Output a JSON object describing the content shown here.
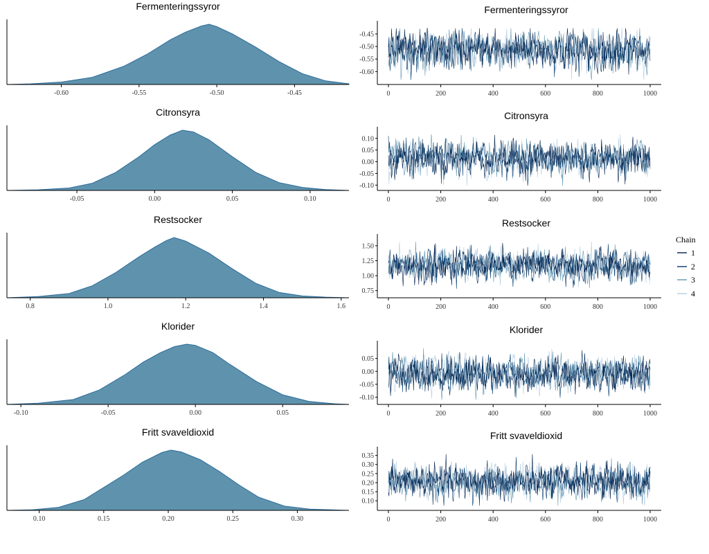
{
  "colors": {
    "density_fill": "#5f93ad",
    "density_line": "#2b6a9a",
    "axis": "#000000",
    "chain1": "#011f4b",
    "chain2": "#03396c",
    "chain3": "#6497b1",
    "chain4": "#b3cde0"
  },
  "legend": {
    "title": "Chain",
    "items": [
      {
        "label": "1",
        "color": "#011f4b"
      },
      {
        "label": "2",
        "color": "#03396c"
      },
      {
        "label": "3",
        "color": "#6497b1"
      },
      {
        "label": "4",
        "color": "#b3cde0"
      }
    ]
  },
  "chart_data": [
    {
      "type": "area",
      "kind": "density",
      "title": "Fermenteringssyror",
      "xlim": [
        -0.635,
        -0.415
      ],
      "xticks": [
        -0.6,
        -0.55,
        -0.5,
        -0.45
      ],
      "xtick_labels": [
        "-0.60",
        "-0.55",
        "-0.50",
        "-0.45"
      ],
      "x": [
        -0.635,
        -0.62,
        -0.6,
        -0.58,
        -0.56,
        -0.545,
        -0.53,
        -0.52,
        -0.51,
        -0.505,
        -0.5,
        -0.49,
        -0.475,
        -0.46,
        -0.445,
        -0.43,
        -0.415
      ],
      "y": [
        0.0,
        0.01,
        0.04,
        0.12,
        0.3,
        0.5,
        0.74,
        0.87,
        0.97,
        1.0,
        0.96,
        0.84,
        0.62,
        0.38,
        0.18,
        0.06,
        0.01
      ]
    },
    {
      "type": "line",
      "kind": "trace",
      "title": "Fermenteringssyror",
      "xlim": [
        0,
        1000
      ],
      "ylim": [
        -0.635,
        -0.425
      ],
      "xticks": [
        0,
        200,
        400,
        600,
        800,
        1000
      ],
      "yticks": [
        -0.6,
        -0.55,
        -0.5,
        -0.45
      ],
      "ytick_labels": [
        "-0.60",
        "-0.55",
        "-0.50",
        "-0.45"
      ],
      "center": -0.515,
      "sd": 0.037,
      "chains": 4,
      "iterations": 1000
    },
    {
      "type": "area",
      "kind": "density",
      "title": "Citronsyra",
      "xlim": [
        -0.095,
        0.125
      ],
      "xticks": [
        -0.05,
        0.0,
        0.05,
        0.1
      ],
      "xtick_labels": [
        "-0.05",
        "0.00",
        "0.05",
        "0.10"
      ],
      "x": [
        -0.095,
        -0.075,
        -0.055,
        -0.04,
        -0.025,
        -0.01,
        0.0,
        0.01,
        0.018,
        0.025,
        0.035,
        0.05,
        0.065,
        0.08,
        0.095,
        0.11,
        0.125
      ],
      "y": [
        0.0,
        0.01,
        0.04,
        0.12,
        0.3,
        0.56,
        0.76,
        0.92,
        1.0,
        0.97,
        0.84,
        0.56,
        0.3,
        0.13,
        0.05,
        0.015,
        0.0
      ]
    },
    {
      "type": "line",
      "kind": "trace",
      "title": "Citronsyra",
      "xlim": [
        0,
        1000
      ],
      "ylim": [
        -0.105,
        0.12
      ],
      "xticks": [
        0,
        200,
        400,
        600,
        800,
        1000
      ],
      "yticks": [
        -0.1,
        -0.05,
        0.0,
        0.05,
        0.1
      ],
      "ytick_labels": [
        "-0.10",
        "-0.05",
        "0.00",
        "0.05",
        "0.10"
      ],
      "center": 0.015,
      "sd": 0.035,
      "chains": 4,
      "iterations": 1000
    },
    {
      "type": "area",
      "kind": "density",
      "title": "Restsocker",
      "xlim": [
        0.74,
        1.62
      ],
      "xticks": [
        0.8,
        1.0,
        1.2,
        1.4,
        1.6
      ],
      "xtick_labels": [
        "0.8",
        "1.0",
        "1.2",
        "1.4",
        "1.6"
      ],
      "x": [
        0.74,
        0.82,
        0.9,
        0.96,
        1.02,
        1.08,
        1.12,
        1.15,
        1.17,
        1.2,
        1.26,
        1.32,
        1.38,
        1.44,
        1.5,
        1.56,
        1.62
      ],
      "y": [
        0.0,
        0.02,
        0.07,
        0.2,
        0.42,
        0.68,
        0.84,
        0.95,
        1.0,
        0.94,
        0.74,
        0.48,
        0.24,
        0.09,
        0.03,
        0.01,
        0.0
      ]
    },
    {
      "type": "line",
      "kind": "trace",
      "title": "Restsocker",
      "xlim": [
        0,
        1000
      ],
      "ylim": [
        0.7,
        1.58
      ],
      "xticks": [
        0,
        200,
        400,
        600,
        800,
        1000
      ],
      "yticks": [
        0.75,
        1.0,
        1.25,
        1.5
      ],
      "ytick_labels": [
        "0.75",
        "1.00",
        "1.25",
        "1.50"
      ],
      "center": 1.17,
      "sd": 0.13,
      "chains": 4,
      "iterations": 1000
    },
    {
      "type": "area",
      "kind": "density",
      "title": "Klorider",
      "xlim": [
        -0.108,
        0.088
      ],
      "xticks": [
        -0.1,
        -0.05,
        0.0,
        0.05
      ],
      "xtick_labels": [
        "-0.10",
        "-0.05",
        "0.00",
        "0.05"
      ],
      "x": [
        -0.108,
        -0.09,
        -0.07,
        -0.055,
        -0.04,
        -0.03,
        -0.02,
        -0.012,
        -0.005,
        0.0,
        0.01,
        0.02,
        0.035,
        0.05,
        0.065,
        0.08,
        0.088
      ],
      "y": [
        0.0,
        0.02,
        0.08,
        0.24,
        0.5,
        0.7,
        0.86,
        0.96,
        1.0,
        0.98,
        0.86,
        0.66,
        0.38,
        0.16,
        0.05,
        0.01,
        0.0
      ]
    },
    {
      "type": "line",
      "kind": "trace",
      "title": "Klorider",
      "xlim": [
        0,
        1000
      ],
      "ylim": [
        -0.112,
        0.092
      ],
      "xticks": [
        0,
        200,
        400,
        600,
        800,
        1000
      ],
      "yticks": [
        -0.1,
        -0.05,
        0.0,
        0.05
      ],
      "ytick_labels": [
        "-0.10",
        "-0.05",
        "0.00",
        "0.05"
      ],
      "center": -0.01,
      "sd": 0.032,
      "chains": 4,
      "iterations": 1000
    },
    {
      "type": "area",
      "kind": "density",
      "title": "Fritt svaveldioxid",
      "xlim": [
        0.075,
        0.34
      ],
      "xticks": [
        0.1,
        0.15,
        0.2,
        0.25,
        0.3
      ],
      "xtick_labels": [
        "0.10",
        "0.15",
        "0.20",
        "0.25",
        "0.30"
      ],
      "x": [
        0.075,
        0.095,
        0.115,
        0.135,
        0.15,
        0.165,
        0.18,
        0.195,
        0.202,
        0.21,
        0.225,
        0.24,
        0.255,
        0.27,
        0.29,
        0.31,
        0.34
      ],
      "y": [
        0.0,
        0.01,
        0.05,
        0.18,
        0.38,
        0.58,
        0.8,
        0.96,
        1.0,
        0.97,
        0.84,
        0.64,
        0.42,
        0.22,
        0.07,
        0.02,
        0.0
      ]
    },
    {
      "type": "line",
      "kind": "trace",
      "title": "Fritt svaveldioxid",
      "xlim": [
        0,
        1000
      ],
      "ylim": [
        0.07,
        0.36
      ],
      "xticks": [
        0,
        200,
        400,
        600,
        800,
        1000
      ],
      "yticks": [
        0.1,
        0.15,
        0.2,
        0.25,
        0.3,
        0.35
      ],
      "ytick_labels": [
        "0.10",
        "0.15",
        "0.20",
        "0.25",
        "0.30",
        "0.35"
      ],
      "center": 0.205,
      "sd": 0.045,
      "chains": 4,
      "iterations": 1000
    }
  ]
}
